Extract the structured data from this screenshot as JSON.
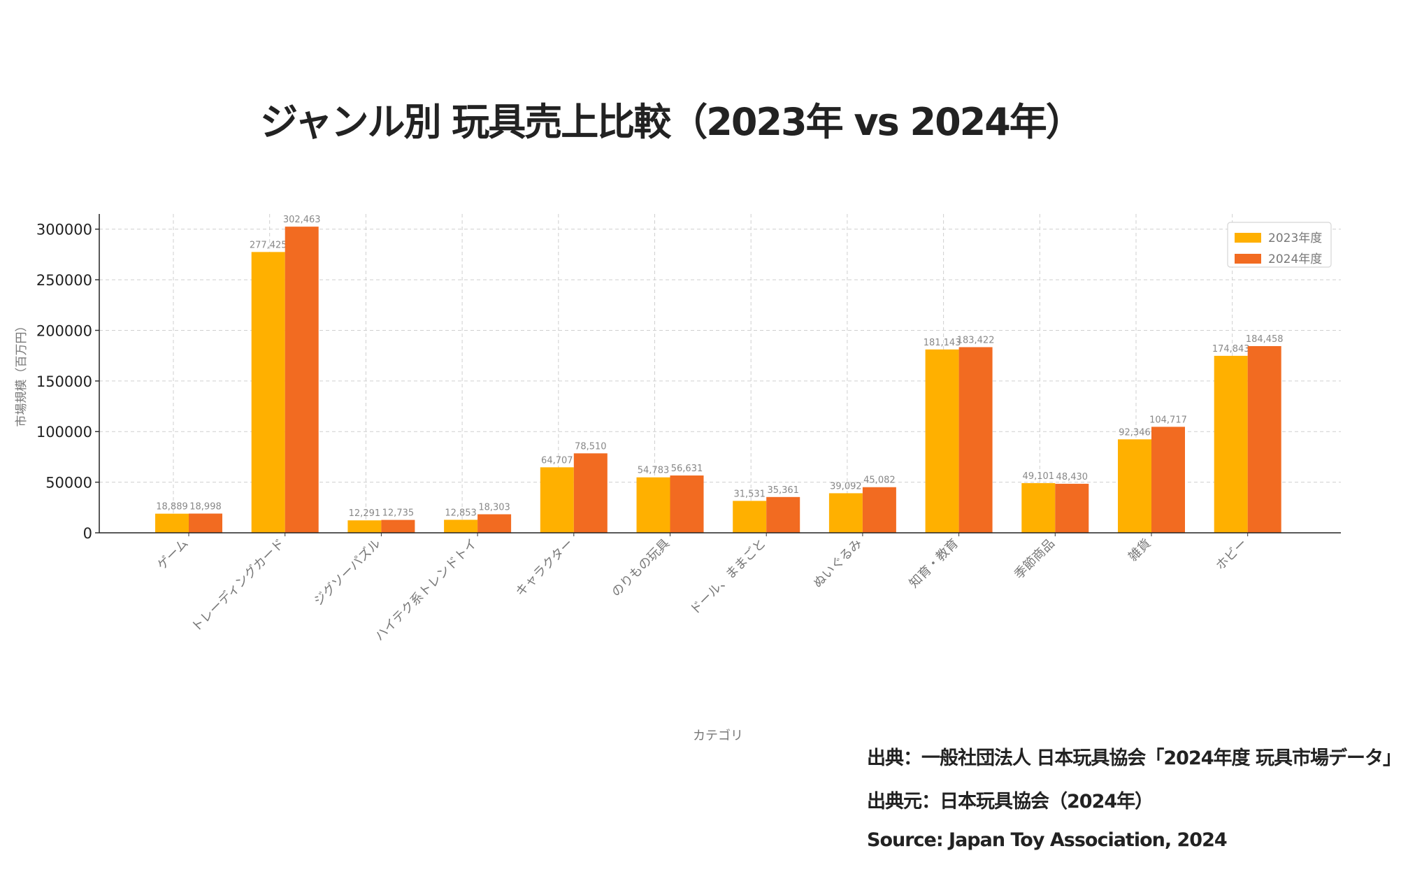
{
  "chart_data": {
    "type": "bar",
    "title": "ジャンル別 玩具売上比較（2023年 vs 2024年）",
    "xlabel": "カテゴリ",
    "ylabel": "市場規模（百万円）",
    "ylim": [
      0,
      315000
    ],
    "yticks": [
      0,
      50000,
      100000,
      150000,
      200000,
      250000,
      300000
    ],
    "grid": true,
    "legend_position": "top-right",
    "categories": [
      "ゲーム",
      "トレーディングカード",
      "ジグソーパズル",
      "ハイテク系トレンドトイ",
      "キャラクター",
      "のりもの玩具",
      "ドール、ままごと",
      "ぬいぐるみ",
      "知育・教育",
      "季節商品",
      "雑貨",
      "ホビー"
    ],
    "series": [
      {
        "name": "2023年度",
        "color": "#FFB000",
        "values": [
          18889,
          277425,
          12291,
          12853,
          64707,
          54783,
          31531,
          39092,
          181143,
          49101,
          92346,
          174843
        ]
      },
      {
        "name": "2024年度",
        "color": "#F26B21",
        "values": [
          18998,
          302463,
          12735,
          18303,
          78510,
          56631,
          35361,
          45082,
          183422,
          48430,
          104717,
          184458
        ]
      }
    ]
  },
  "sources": [
    "出典：一般社団法人 日本玩具協会「2024年度 玩具市場データ」",
    "出典元：日本玩具協会（2024年）",
    "Source: Japan Toy Association, 2024"
  ]
}
